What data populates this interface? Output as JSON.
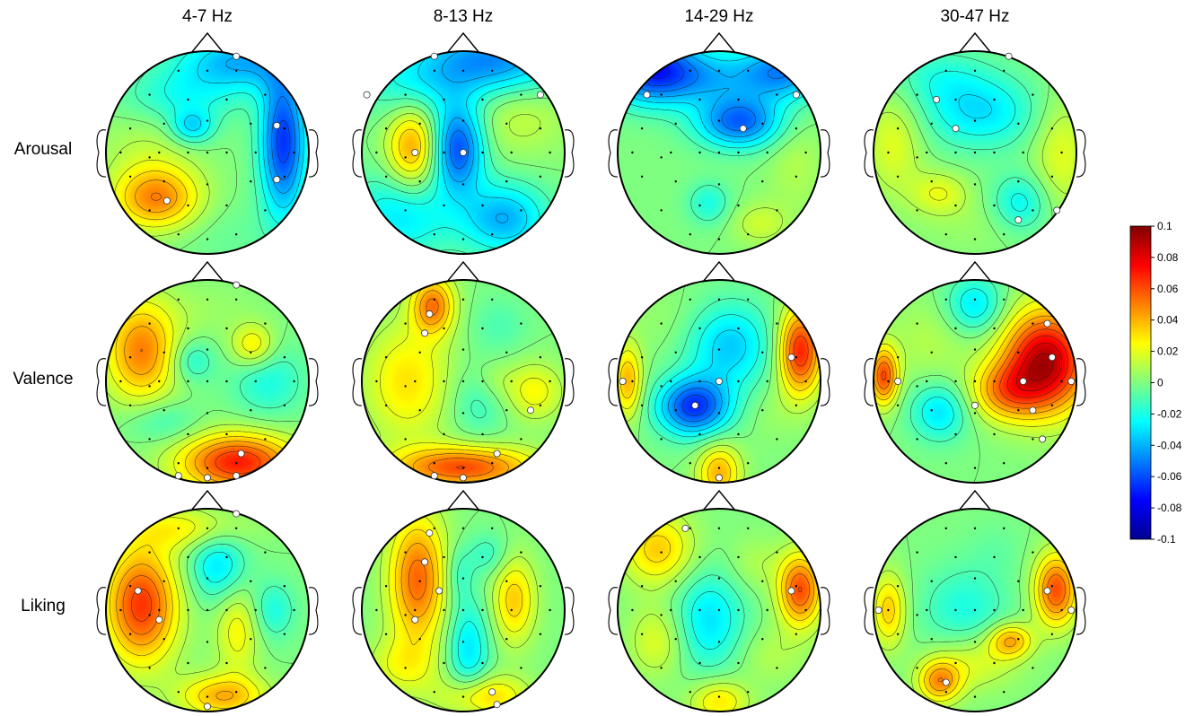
{
  "chart_data": {
    "type": "heatmap",
    "subtype": "eeg-topographic-map-grid",
    "columns": [
      "4-7 Hz",
      "8-13 Hz",
      "14-29 Hz",
      "30-47 Hz"
    ],
    "rows": [
      "Arousal",
      "Valence",
      "Liking"
    ],
    "colorbar": {
      "min": -0.1,
      "max": 0.1,
      "colormap": "jet",
      "ticks": [
        "0.1",
        "0.08",
        "0.06",
        "0.04",
        "0.02",
        "0",
        "-0.02",
        "-0.04",
        "-0.06",
        "-0.08",
        "-0.1"
      ]
    },
    "maps": [
      {
        "row": "Arousal",
        "column": "4-7 Hz",
        "extrema": [
          {
            "x": -0.5,
            "y": -0.45,
            "sx": 0.3,
            "sy": 0.22,
            "v": 0.05
          },
          {
            "x": 0.75,
            "y": 0.1,
            "sx": 0.16,
            "sy": 0.5,
            "v": -0.065
          },
          {
            "x": 0.35,
            "y": 0.9,
            "sx": 0.45,
            "sy": 0.2,
            "v": -0.04
          },
          {
            "x": -0.25,
            "y": 0.55,
            "sx": 0.4,
            "sy": 0.2,
            "v": -0.02
          },
          {
            "x": -0.15,
            "y": 0.25,
            "sx": 0.15,
            "sy": 0.12,
            "v": -0.03
          },
          {
            "x": -0.6,
            "y": 0.05,
            "sx": 0.35,
            "sy": 0.25,
            "v": 0.01
          },
          {
            "x": 0.2,
            "y": -0.8,
            "sx": 0.5,
            "sy": 0.25,
            "v": -0.005
          }
        ]
      },
      {
        "row": "Arousal",
        "column": "8-13 Hz",
        "extrema": [
          {
            "x": -0.5,
            "y": 0.05,
            "sx": 0.18,
            "sy": 0.3,
            "v": 0.045
          },
          {
            "x": -0.05,
            "y": 0.05,
            "sx": 0.18,
            "sy": 0.3,
            "v": -0.06
          },
          {
            "x": 0.55,
            "y": 0.4,
            "sx": 0.35,
            "sy": 0.3,
            "v": 0.015
          },
          {
            "x": 0.3,
            "y": 0.9,
            "sx": 0.5,
            "sy": 0.25,
            "v": -0.05
          },
          {
            "x": 0.4,
            "y": -0.65,
            "sx": 0.3,
            "sy": 0.25,
            "v": -0.04
          },
          {
            "x": -0.6,
            "y": -0.6,
            "sx": 0.35,
            "sy": 0.3,
            "v": -0.03
          },
          {
            "x": -0.5,
            "y": 0.65,
            "sx": 0.35,
            "sy": 0.25,
            "v": -0.02
          }
        ]
      },
      {
        "row": "Arousal",
        "column": "14-29 Hz",
        "extrema": [
          {
            "x": 0.2,
            "y": 0.3,
            "sx": 0.3,
            "sy": 0.18,
            "v": -0.055
          },
          {
            "x": -0.7,
            "y": 0.85,
            "sx": 0.3,
            "sy": 0.25,
            "v": -0.055
          },
          {
            "x": 0.65,
            "y": 0.8,
            "sx": 0.3,
            "sy": 0.2,
            "v": -0.045
          },
          {
            "x": -0.2,
            "y": 0.75,
            "sx": 0.45,
            "sy": 0.2,
            "v": -0.035
          },
          {
            "x": 0.4,
            "y": -0.7,
            "sx": 0.2,
            "sy": 0.15,
            "v": 0.015
          },
          {
            "x": -0.1,
            "y": -0.5,
            "sx": 0.15,
            "sy": 0.15,
            "v": -0.02
          },
          {
            "x": 0.75,
            "y": -0.1,
            "sx": 0.2,
            "sy": 0.35,
            "v": 0.01
          }
        ]
      },
      {
        "row": "Arousal",
        "column": "30-47 Hz",
        "extrema": [
          {
            "x": -0.8,
            "y": 0.1,
            "sx": 0.2,
            "sy": 0.35,
            "v": 0.02
          },
          {
            "x": 0.85,
            "y": 0.0,
            "sx": 0.2,
            "sy": 0.4,
            "v": 0.02
          },
          {
            "x": 0.05,
            "y": 0.4,
            "sx": 0.4,
            "sy": 0.25,
            "v": -0.03
          },
          {
            "x": -0.35,
            "y": -0.4,
            "sx": 0.2,
            "sy": 0.15,
            "v": 0.02
          },
          {
            "x": 0.45,
            "y": -0.5,
            "sx": 0.2,
            "sy": 0.2,
            "v": -0.025
          },
          {
            "x": 0.0,
            "y": -0.7,
            "sx": 0.4,
            "sy": 0.2,
            "v": 0.005
          },
          {
            "x": -0.35,
            "y": 0.75,
            "sx": 0.35,
            "sy": 0.2,
            "v": -0.015
          }
        ]
      },
      {
        "row": "Valence",
        "column": "4-7 Hz",
        "extrema": [
          {
            "x": -0.65,
            "y": 0.3,
            "sx": 0.25,
            "sy": 0.35,
            "v": 0.05
          },
          {
            "x": 0.3,
            "y": -0.8,
            "sx": 0.4,
            "sy": 0.2,
            "v": 0.07
          },
          {
            "x": 0.45,
            "y": 0.35,
            "sx": 0.15,
            "sy": 0.15,
            "v": 0.03
          },
          {
            "x": 0.6,
            "y": 0.0,
            "sx": 0.25,
            "sy": 0.25,
            "v": -0.02
          },
          {
            "x": -0.15,
            "y": 0.2,
            "sx": 0.15,
            "sy": 0.15,
            "v": -0.02
          },
          {
            "x": -0.45,
            "y": -0.4,
            "sx": 0.25,
            "sy": 0.15,
            "v": -0.015
          },
          {
            "x": 0.0,
            "y": 0.7,
            "sx": 0.35,
            "sy": 0.2,
            "v": 0.005
          }
        ]
      },
      {
        "row": "Valence",
        "column": "8-13 Hz",
        "extrema": [
          {
            "x": -0.3,
            "y": 0.75,
            "sx": 0.15,
            "sy": 0.2,
            "v": 0.05
          },
          {
            "x": 0.0,
            "y": -0.85,
            "sx": 0.5,
            "sy": 0.15,
            "v": 0.06
          },
          {
            "x": -0.55,
            "y": 0.0,
            "sx": 0.3,
            "sy": 0.4,
            "v": 0.03
          },
          {
            "x": 0.15,
            "y": -0.2,
            "sx": 0.2,
            "sy": 0.25,
            "v": -0.015
          },
          {
            "x": 0.35,
            "y": 0.55,
            "sx": 0.2,
            "sy": 0.2,
            "v": -0.01
          },
          {
            "x": 0.7,
            "y": -0.1,
            "sx": 0.2,
            "sy": 0.2,
            "v": 0.025
          },
          {
            "x": 0.3,
            "y": 0.0,
            "sx": 0.15,
            "sy": 0.15,
            "v": 0.01
          }
        ]
      },
      {
        "row": "Valence",
        "column": "14-29 Hz",
        "extrema": [
          {
            "x": -0.25,
            "y": -0.25,
            "sx": 0.25,
            "sy": 0.2,
            "v": -0.065
          },
          {
            "x": 0.8,
            "y": 0.3,
            "sx": 0.15,
            "sy": 0.3,
            "v": 0.07
          },
          {
            "x": -0.9,
            "y": 0.0,
            "sx": 0.1,
            "sy": 0.25,
            "v": 0.04
          },
          {
            "x": 0.0,
            "y": -0.9,
            "sx": 0.15,
            "sy": 0.2,
            "v": 0.04
          },
          {
            "x": 0.1,
            "y": 0.35,
            "sx": 0.3,
            "sy": 0.3,
            "v": -0.035
          },
          {
            "x": 0.5,
            "y": -0.3,
            "sx": 0.2,
            "sy": 0.2,
            "v": 0.005
          },
          {
            "x": -0.5,
            "y": 0.6,
            "sx": 0.3,
            "sy": 0.25,
            "v": 0.005
          }
        ]
      },
      {
        "row": "Valence",
        "column": "30-47 Hz",
        "extrema": [
          {
            "x": 0.7,
            "y": 0.2,
            "sx": 0.3,
            "sy": 0.35,
            "v": 0.09
          },
          {
            "x": 0.3,
            "y": -0.1,
            "sx": 0.25,
            "sy": 0.2,
            "v": 0.04
          },
          {
            "x": -0.9,
            "y": 0.05,
            "sx": 0.1,
            "sy": 0.2,
            "v": 0.06
          },
          {
            "x": -0.35,
            "y": -0.3,
            "sx": 0.2,
            "sy": 0.2,
            "v": -0.03
          },
          {
            "x": 0.0,
            "y": 0.75,
            "sx": 0.2,
            "sy": 0.2,
            "v": -0.03
          },
          {
            "x": -0.45,
            "y": 0.4,
            "sx": 0.3,
            "sy": 0.3,
            "v": 0.01
          },
          {
            "x": 0.1,
            "y": -0.85,
            "sx": 0.3,
            "sy": 0.15,
            "v": 0.0
          }
        ]
      },
      {
        "row": "Liking",
        "column": "4-7 Hz",
        "extrema": [
          {
            "x": -0.65,
            "y": 0.05,
            "sx": 0.25,
            "sy": 0.4,
            "v": 0.065
          },
          {
            "x": 0.1,
            "y": 0.45,
            "sx": 0.2,
            "sy": 0.25,
            "v": -0.03
          },
          {
            "x": 0.65,
            "y": 0.0,
            "sx": 0.15,
            "sy": 0.2,
            "v": -0.02
          },
          {
            "x": 0.3,
            "y": -0.2,
            "sx": 0.15,
            "sy": 0.3,
            "v": 0.025
          },
          {
            "x": 0.15,
            "y": -0.85,
            "sx": 0.3,
            "sy": 0.15,
            "v": 0.04
          },
          {
            "x": -0.3,
            "y": -0.55,
            "sx": 0.2,
            "sy": 0.15,
            "v": 0.0
          },
          {
            "x": -0.2,
            "y": 0.8,
            "sx": 0.4,
            "sy": 0.15,
            "v": 0.025
          }
        ]
      },
      {
        "row": "Liking",
        "column": "8-13 Hz",
        "extrema": [
          {
            "x": -0.45,
            "y": 0.3,
            "sx": 0.2,
            "sy": 0.45,
            "v": 0.055
          },
          {
            "x": 0.5,
            "y": 0.1,
            "sx": 0.15,
            "sy": 0.3,
            "v": 0.035
          },
          {
            "x": 0.05,
            "y": -0.4,
            "sx": 0.15,
            "sy": 0.35,
            "v": -0.03
          },
          {
            "x": -0.05,
            "y": 0.35,
            "sx": 0.1,
            "sy": 0.2,
            "v": -0.015
          },
          {
            "x": 0.25,
            "y": 0.55,
            "sx": 0.15,
            "sy": 0.15,
            "v": -0.015
          },
          {
            "x": 0.2,
            "y": -0.85,
            "sx": 0.3,
            "sy": 0.15,
            "v": 0.035
          },
          {
            "x": -0.6,
            "y": -0.55,
            "sx": 0.25,
            "sy": 0.2,
            "v": 0.02
          }
        ]
      },
      {
        "row": "Liking",
        "column": "14-29 Hz",
        "extrema": [
          {
            "x": -0.1,
            "y": -0.1,
            "sx": 0.25,
            "sy": 0.35,
            "v": -0.03
          },
          {
            "x": 0.8,
            "y": 0.2,
            "sx": 0.15,
            "sy": 0.25,
            "v": 0.06
          },
          {
            "x": -0.6,
            "y": 0.6,
            "sx": 0.25,
            "sy": 0.25,
            "v": 0.035
          },
          {
            "x": 0.0,
            "y": -0.9,
            "sx": 0.2,
            "sy": 0.15,
            "v": 0.03
          },
          {
            "x": 0.35,
            "y": 0.45,
            "sx": 0.2,
            "sy": 0.2,
            "v": 0.01
          },
          {
            "x": -0.6,
            "y": -0.3,
            "sx": 0.2,
            "sy": 0.25,
            "v": 0.02
          },
          {
            "x": 0.5,
            "y": -0.45,
            "sx": 0.25,
            "sy": 0.2,
            "v": 0.01
          }
        ]
      },
      {
        "row": "Liking",
        "column": "30-47 Hz",
        "extrema": [
          {
            "x": 0.8,
            "y": 0.2,
            "sx": 0.15,
            "sy": 0.25,
            "v": 0.06
          },
          {
            "x": -0.35,
            "y": -0.7,
            "sx": 0.15,
            "sy": 0.15,
            "v": 0.045
          },
          {
            "x": 0.35,
            "y": -0.3,
            "sx": 0.15,
            "sy": 0.12,
            "v": 0.04
          },
          {
            "x": -0.85,
            "y": 0.0,
            "sx": 0.12,
            "sy": 0.25,
            "v": 0.035
          },
          {
            "x": -0.1,
            "y": 0.0,
            "sx": 0.3,
            "sy": 0.3,
            "v": -0.02
          },
          {
            "x": 0.2,
            "y": 0.6,
            "sx": 0.2,
            "sy": 0.2,
            "v": -0.005
          },
          {
            "x": 0.0,
            "y": -0.5,
            "sx": 0.3,
            "sy": 0.2,
            "v": 0.02
          }
        ]
      }
    ]
  }
}
